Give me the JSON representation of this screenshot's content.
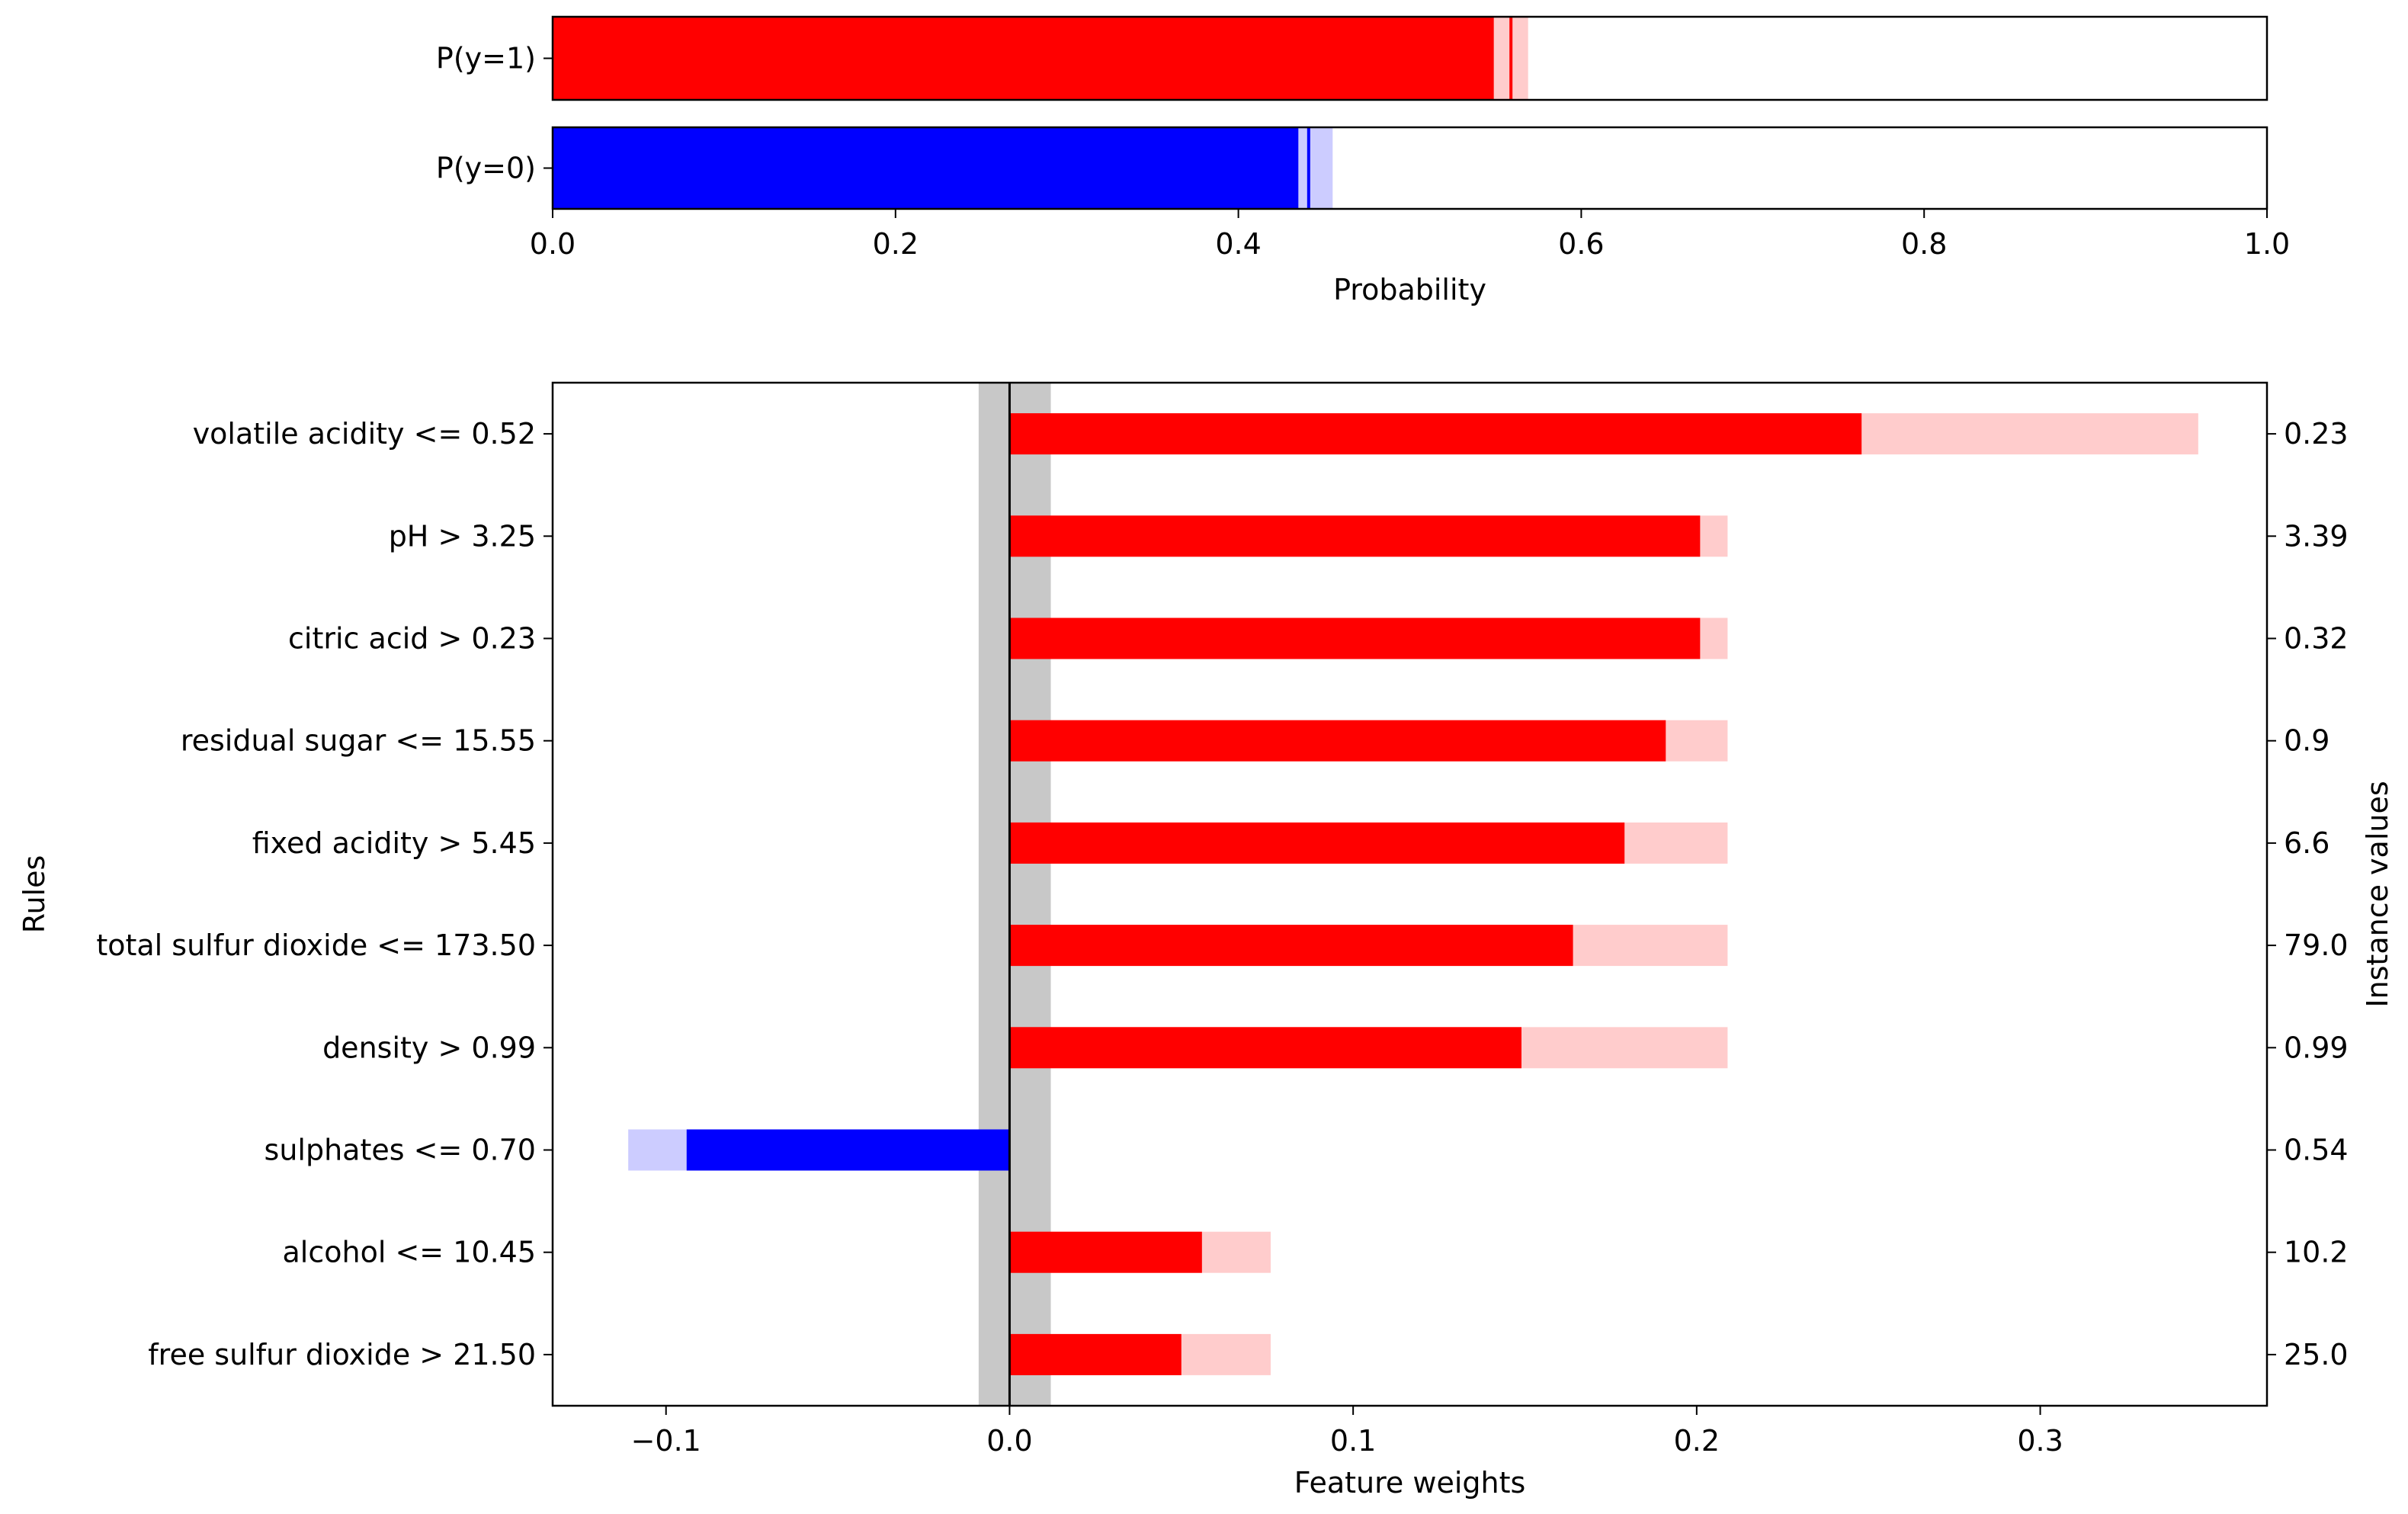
{
  "chart_data": [
    {
      "type": "bar",
      "orientation": "horizontal",
      "xlabel": "Probability",
      "xlim": [
        0.0,
        1.0
      ],
      "xticks": [
        0.0,
        0.2,
        0.4,
        0.6,
        0.8,
        1.0
      ],
      "xtick_labels": [
        "0.0",
        "0.2",
        "0.4",
        "0.6",
        "0.8",
        "1.0"
      ],
      "categories": [
        "P(y=1)",
        "P(y=0)"
      ],
      "values": [
        0.559,
        0.441
      ],
      "interval_low": [
        0.549,
        0.435
      ],
      "interval_high": [
        0.569,
        0.455
      ],
      "colors": [
        "#ff0000",
        "#0000ff"
      ]
    },
    {
      "type": "bar",
      "orientation": "horizontal",
      "xlabel": "Feature weights",
      "ylabel": "Rules",
      "ylabel_right": "Instance values",
      "xlim": [
        -0.133,
        0.366
      ],
      "xticks": [
        -0.1,
        0.0,
        0.1,
        0.2,
        0.3
      ],
      "xtick_labels": [
        "−0.1",
        "0.0",
        "0.1",
        "0.2",
        "0.3"
      ],
      "baseline_band": [
        -0.009,
        0.012
      ],
      "categories": [
        "volatile acidity <= 0.52",
        "pH > 3.25",
        "citric acid > 0.23",
        "residual sugar <= 15.55",
        "fixed acidity > 5.45",
        "total sulfur dioxide <= 173.50",
        "density > 0.99",
        "sulphates <= 0.70",
        "alcohol <= 10.45",
        "free sulfur dioxide > 21.50"
      ],
      "instance_values": [
        "0.23",
        "3.39",
        "0.32",
        "0.9",
        "6.6",
        "79.0",
        "0.99",
        "0.54",
        "10.2",
        "25.0"
      ],
      "weights": [
        0.248,
        0.201,
        0.201,
        0.191,
        0.179,
        0.164,
        0.149,
        -0.094,
        0.056,
        0.05
      ],
      "uncertainty_extent": [
        0.346,
        0.209,
        0.209,
        0.209,
        0.209,
        0.209,
        0.209,
        -0.111,
        0.076,
        0.076
      ],
      "positive_color": "#ff0000",
      "negative_color": "#0000ff"
    }
  ]
}
